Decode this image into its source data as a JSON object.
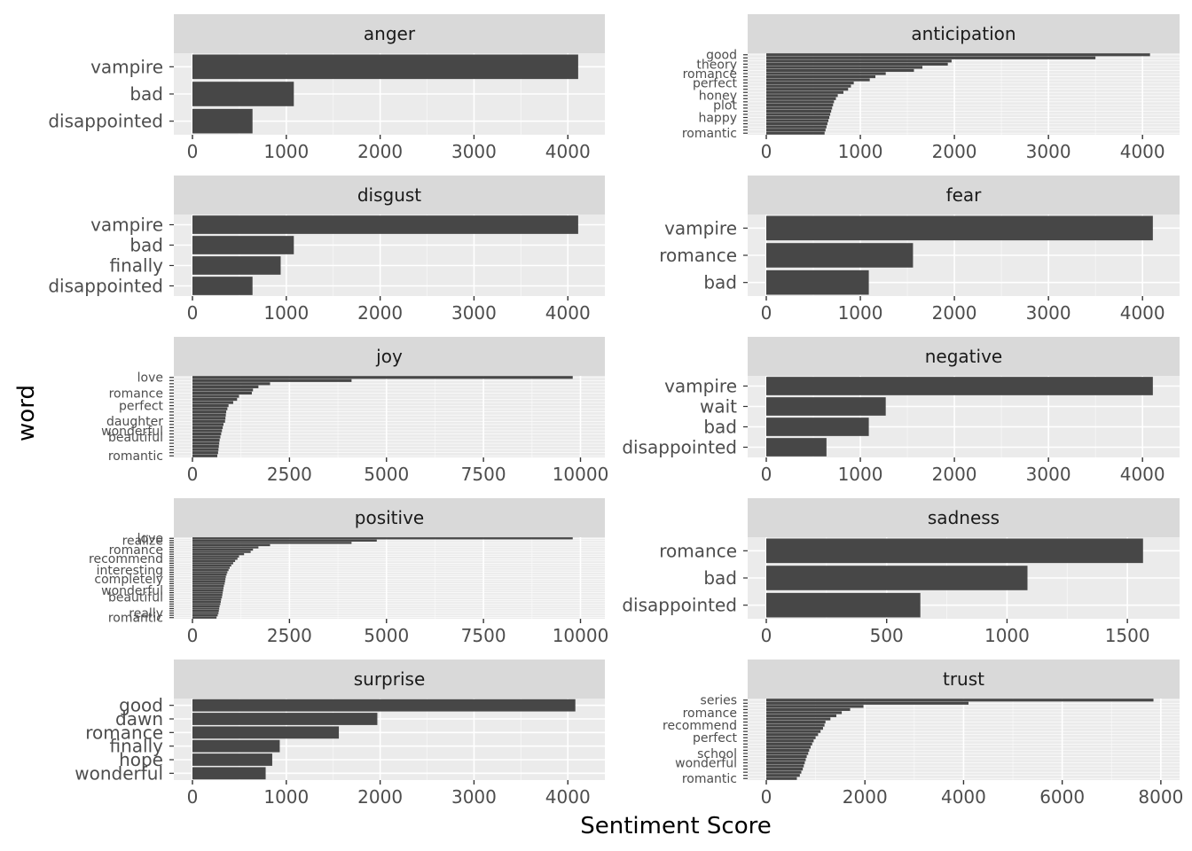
{
  "chart_data": {
    "type": "bar",
    "orientation": "horizontal",
    "facet_layout": "2 columns x 5 rows, free scales",
    "xlabel": "Sentiment Score",
    "ylabel": "word",
    "grid": true,
    "colors": {
      "bar": "#474747",
      "panel": "#ebebeb",
      "strip": "#d9d9d9",
      "grid": "#ffffff"
    },
    "panels": [
      {
        "facet": "anger",
        "xlim": [
          0,
          4300
        ],
        "ticks": [
          0,
          1000,
          2000,
          3000,
          4000
        ],
        "words": [
          "vampire",
          "bad",
          "disappointed"
        ],
        "values": [
          4110,
          1080,
          640
        ]
      },
      {
        "facet": "anticipation",
        "xlim": [
          0,
          4300
        ],
        "ticks": [
          0,
          1000,
          2000,
          3000,
          4000
        ],
        "words": [
          "good",
          "",
          "",
          "theory",
          "",
          "",
          "romance",
          "",
          "",
          "perfect",
          "",
          "",
          "",
          "honey",
          "",
          "",
          "plot",
          "",
          "",
          "",
          "happy",
          "",
          "",
          "",
          "",
          "romantic"
        ],
        "values": [
          4080,
          3500,
          1970,
          1930,
          1660,
          1570,
          1270,
          1160,
          1100,
          930,
          900,
          870,
          820,
          760,
          740,
          720,
          710,
          700,
          690,
          680,
          670,
          660,
          650,
          640,
          630,
          620
        ],
        "overlapping_labels": true
      },
      {
        "facet": "disgust",
        "xlim": [
          0,
          4300
        ],
        "ticks": [
          0,
          1000,
          2000,
          3000,
          4000
        ],
        "words": [
          "vampire",
          "bad",
          "finally",
          "disappointed"
        ],
        "values": [
          4110,
          1080,
          940,
          640
        ]
      },
      {
        "facet": "fear",
        "xlim": [
          0,
          4300
        ],
        "ticks": [
          0,
          1000,
          2000,
          3000,
          4000
        ],
        "words": [
          "vampire",
          "romance",
          "bad"
        ],
        "values": [
          4110,
          1560,
          1090
        ]
      },
      {
        "facet": "joy",
        "xlim": [
          0,
          10400
        ],
        "ticks": [
          0,
          2500,
          5000,
          7500,
          10000
        ],
        "words": [
          "love",
          "",
          "",
          "",
          "",
          "romance",
          "",
          "",
          "",
          "perfect",
          "",
          "",
          "",
          "",
          "daughter",
          "",
          "",
          "wonderful",
          "",
          "beautiful",
          "",
          "",
          "",
          "",
          "",
          "romantic"
        ],
        "values": [
          9800,
          4100,
          2000,
          1700,
          1560,
          1530,
          1200,
          1150,
          1050,
          930,
          900,
          870,
          860,
          850,
          840,
          800,
          780,
          760,
          740,
          720,
          700,
          690,
          680,
          670,
          660,
          640
        ],
        "overlapping_labels": true
      },
      {
        "facet": "negative",
        "xlim": [
          0,
          4300
        ],
        "ticks": [
          0,
          1000,
          2000,
          3000,
          4000
        ],
        "words": [
          "vampire",
          "wait",
          "bad",
          "disappointed"
        ],
        "values": [
          4110,
          1270,
          1090,
          640
        ]
      },
      {
        "facet": "positive",
        "xlim": [
          0,
          10400
        ],
        "ticks": [
          0,
          2500,
          5000,
          7500,
          10000
        ],
        "words": [
          "love",
          "realize",
          "",
          "",
          "",
          "romance",
          "",
          "",
          "",
          "recommend",
          "",
          "",
          "",
          "",
          "interesting",
          "",
          "",
          "",
          "completely",
          "",
          "",
          "",
          "",
          "wonderful",
          "",
          "",
          "beautiful",
          "",
          "",
          "",
          "",
          "",
          "",
          "really",
          "",
          "romantic"
        ],
        "values": [
          9800,
          4750,
          4100,
          2000,
          1700,
          1560,
          1500,
          1330,
          1200,
          1160,
          1100,
          1050,
          1000,
          960,
          930,
          900,
          880,
          860,
          850,
          840,
          830,
          810,
          800,
          790,
          780,
          770,
          760,
          740,
          730,
          720,
          700,
          690,
          680,
          670,
          650,
          620
        ],
        "overlapping_labels": true
      },
      {
        "facet": "sadness",
        "xlim": [
          0,
          1680
        ],
        "ticks": [
          0,
          500,
          1000,
          1500
        ],
        "words": [
          "romance",
          "bad",
          "disappointed"
        ],
        "values": [
          1565,
          1085,
          640
        ]
      },
      {
        "facet": "surprise",
        "xlim": [
          0,
          4300
        ],
        "ticks": [
          0,
          1000,
          2000,
          3000,
          4000
        ],
        "words": [
          "good",
          "dawn",
          "romance",
          "finally",
          "hope",
          "wonderful"
        ],
        "values": [
          4080,
          1970,
          1560,
          930,
          850,
          780
        ]
      },
      {
        "facet": "trust",
        "xlim": [
          0,
          8200
        ],
        "ticks": [
          0,
          2000,
          4000,
          6000,
          8000
        ],
        "words": [
          "series",
          "",
          "",
          "",
          "romance",
          "",
          "",
          "",
          "recommend",
          "",
          "",
          "",
          "perfect",
          "",
          "",
          "",
          "",
          "school",
          "",
          "",
          "wonderful",
          "",
          "",
          "",
          "",
          "romantic"
        ],
        "values": [
          7850,
          4100,
          1970,
          1700,
          1530,
          1420,
          1300,
          1200,
          1180,
          1150,
          1100,
          1050,
          1000,
          960,
          930,
          900,
          870,
          850,
          820,
          800,
          780,
          760,
          740,
          710,
          680,
          620
        ],
        "overlapping_labels": true
      }
    ]
  }
}
